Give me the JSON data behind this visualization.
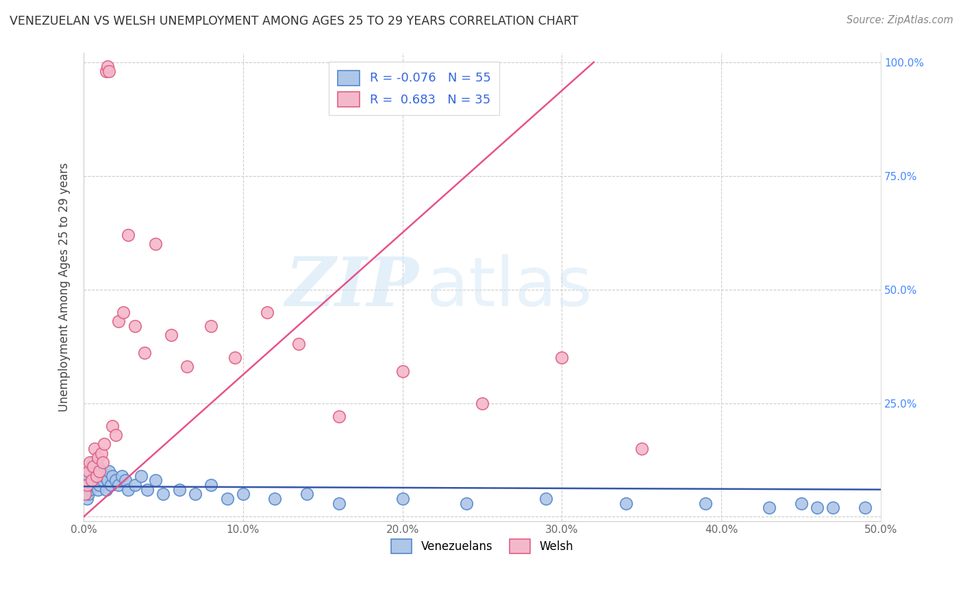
{
  "title": "VENEZUELAN VS WELSH UNEMPLOYMENT AMONG AGES 25 TO 29 YEARS CORRELATION CHART",
  "source": "Source: ZipAtlas.com",
  "ylabel": "Unemployment Among Ages 25 to 29 years",
  "xlim": [
    0.0,
    0.5
  ],
  "ylim": [
    -0.01,
    1.02
  ],
  "venezuelan_color": "#aec6e8",
  "welsh_color": "#f4b8cc",
  "venezuelan_edge": "#5588cc",
  "welsh_edge": "#e06080",
  "venezuelan_line_color": "#3355aa",
  "welsh_line_color": "#e8508a",
  "background_color": "#ffffff",
  "grid_color": "#cccccc",
  "legend_R_venezuelan": "-0.076",
  "legend_N_venezuelan": "55",
  "legend_R_welsh": "0.683",
  "legend_N_welsh": "35",
  "watermark_zip": "ZIP",
  "watermark_atlas": "atlas",
  "tick_label_color_x": "#666666",
  "tick_label_color_y": "#4488ff",
  "venezuelan_x": [
    0.001,
    0.002,
    0.002,
    0.003,
    0.003,
    0.004,
    0.004,
    0.005,
    0.005,
    0.006,
    0.006,
    0.007,
    0.007,
    0.008,
    0.008,
    0.009,
    0.009,
    0.01,
    0.01,
    0.011,
    0.012,
    0.013,
    0.014,
    0.015,
    0.016,
    0.017,
    0.018,
    0.02,
    0.022,
    0.024,
    0.026,
    0.028,
    0.032,
    0.036,
    0.04,
    0.045,
    0.05,
    0.06,
    0.07,
    0.08,
    0.09,
    0.1,
    0.12,
    0.14,
    0.16,
    0.2,
    0.24,
    0.29,
    0.34,
    0.39,
    0.43,
    0.45,
    0.46,
    0.47,
    0.49
  ],
  "venezuelan_y": [
    0.06,
    0.04,
    0.08,
    0.05,
    0.09,
    0.06,
    0.1,
    0.07,
    0.11,
    0.08,
    0.12,
    0.09,
    0.07,
    0.1,
    0.08,
    0.11,
    0.06,
    0.09,
    0.07,
    0.1,
    0.08,
    0.09,
    0.06,
    0.08,
    0.1,
    0.07,
    0.09,
    0.08,
    0.07,
    0.09,
    0.08,
    0.06,
    0.07,
    0.09,
    0.06,
    0.08,
    0.05,
    0.06,
    0.05,
    0.07,
    0.04,
    0.05,
    0.04,
    0.05,
    0.03,
    0.04,
    0.03,
    0.04,
    0.03,
    0.03,
    0.02,
    0.03,
    0.02,
    0.02,
    0.02
  ],
  "welsh_x": [
    0.001,
    0.002,
    0.003,
    0.004,
    0.005,
    0.006,
    0.007,
    0.008,
    0.009,
    0.01,
    0.011,
    0.012,
    0.013,
    0.014,
    0.015,
    0.016,
    0.018,
    0.02,
    0.022,
    0.025,
    0.028,
    0.032,
    0.038,
    0.045,
    0.055,
    0.065,
    0.08,
    0.095,
    0.115,
    0.135,
    0.16,
    0.2,
    0.25,
    0.3,
    0.35
  ],
  "welsh_y": [
    0.05,
    0.07,
    0.1,
    0.12,
    0.08,
    0.11,
    0.15,
    0.09,
    0.13,
    0.1,
    0.14,
    0.12,
    0.16,
    0.98,
    0.99,
    0.98,
    0.2,
    0.18,
    0.43,
    0.45,
    0.62,
    0.42,
    0.36,
    0.6,
    0.4,
    0.33,
    0.42,
    0.35,
    0.45,
    0.38,
    0.22,
    0.32,
    0.25,
    0.35,
    0.15
  ]
}
